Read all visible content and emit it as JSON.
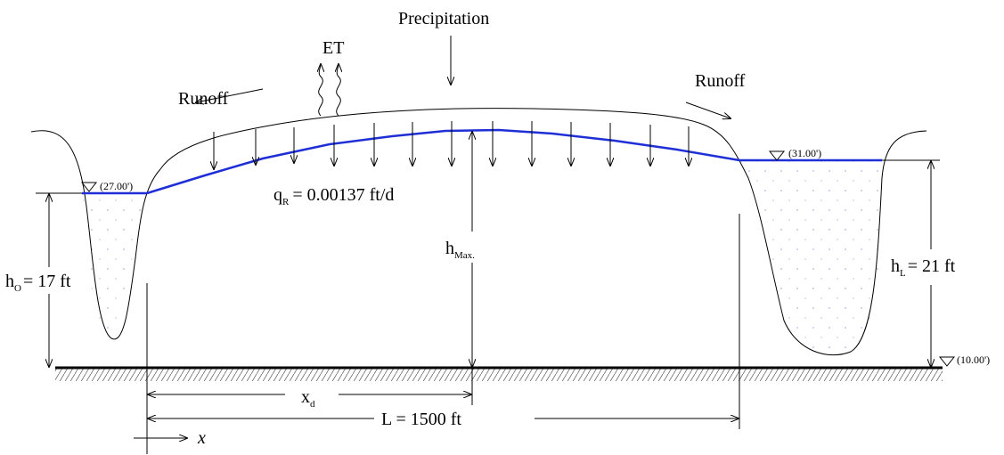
{
  "labels": {
    "precipitation": "Precipitation",
    "et": "ET",
    "runoff_left": "Runoff",
    "runoff_right": "Runoff"
  },
  "elevations": {
    "left_water": "(27.00')",
    "right_water": "(31.00')",
    "base": "(10.00')"
  },
  "recharge": {
    "main": "q",
    "sub": "R",
    "rest": "= 0.00137 ft/d"
  },
  "h_max": {
    "main": "h",
    "sub": "Max."
  },
  "h_left": {
    "main": "h",
    "sub": "O",
    "rest": "= 17 ft"
  },
  "h_right": {
    "main": "h",
    "sub": "L",
    "rest": "= 21 ft"
  },
  "x_d": {
    "main": "x",
    "sub": "d"
  },
  "length": "L = 1500 ft",
  "x_axis": "x"
}
